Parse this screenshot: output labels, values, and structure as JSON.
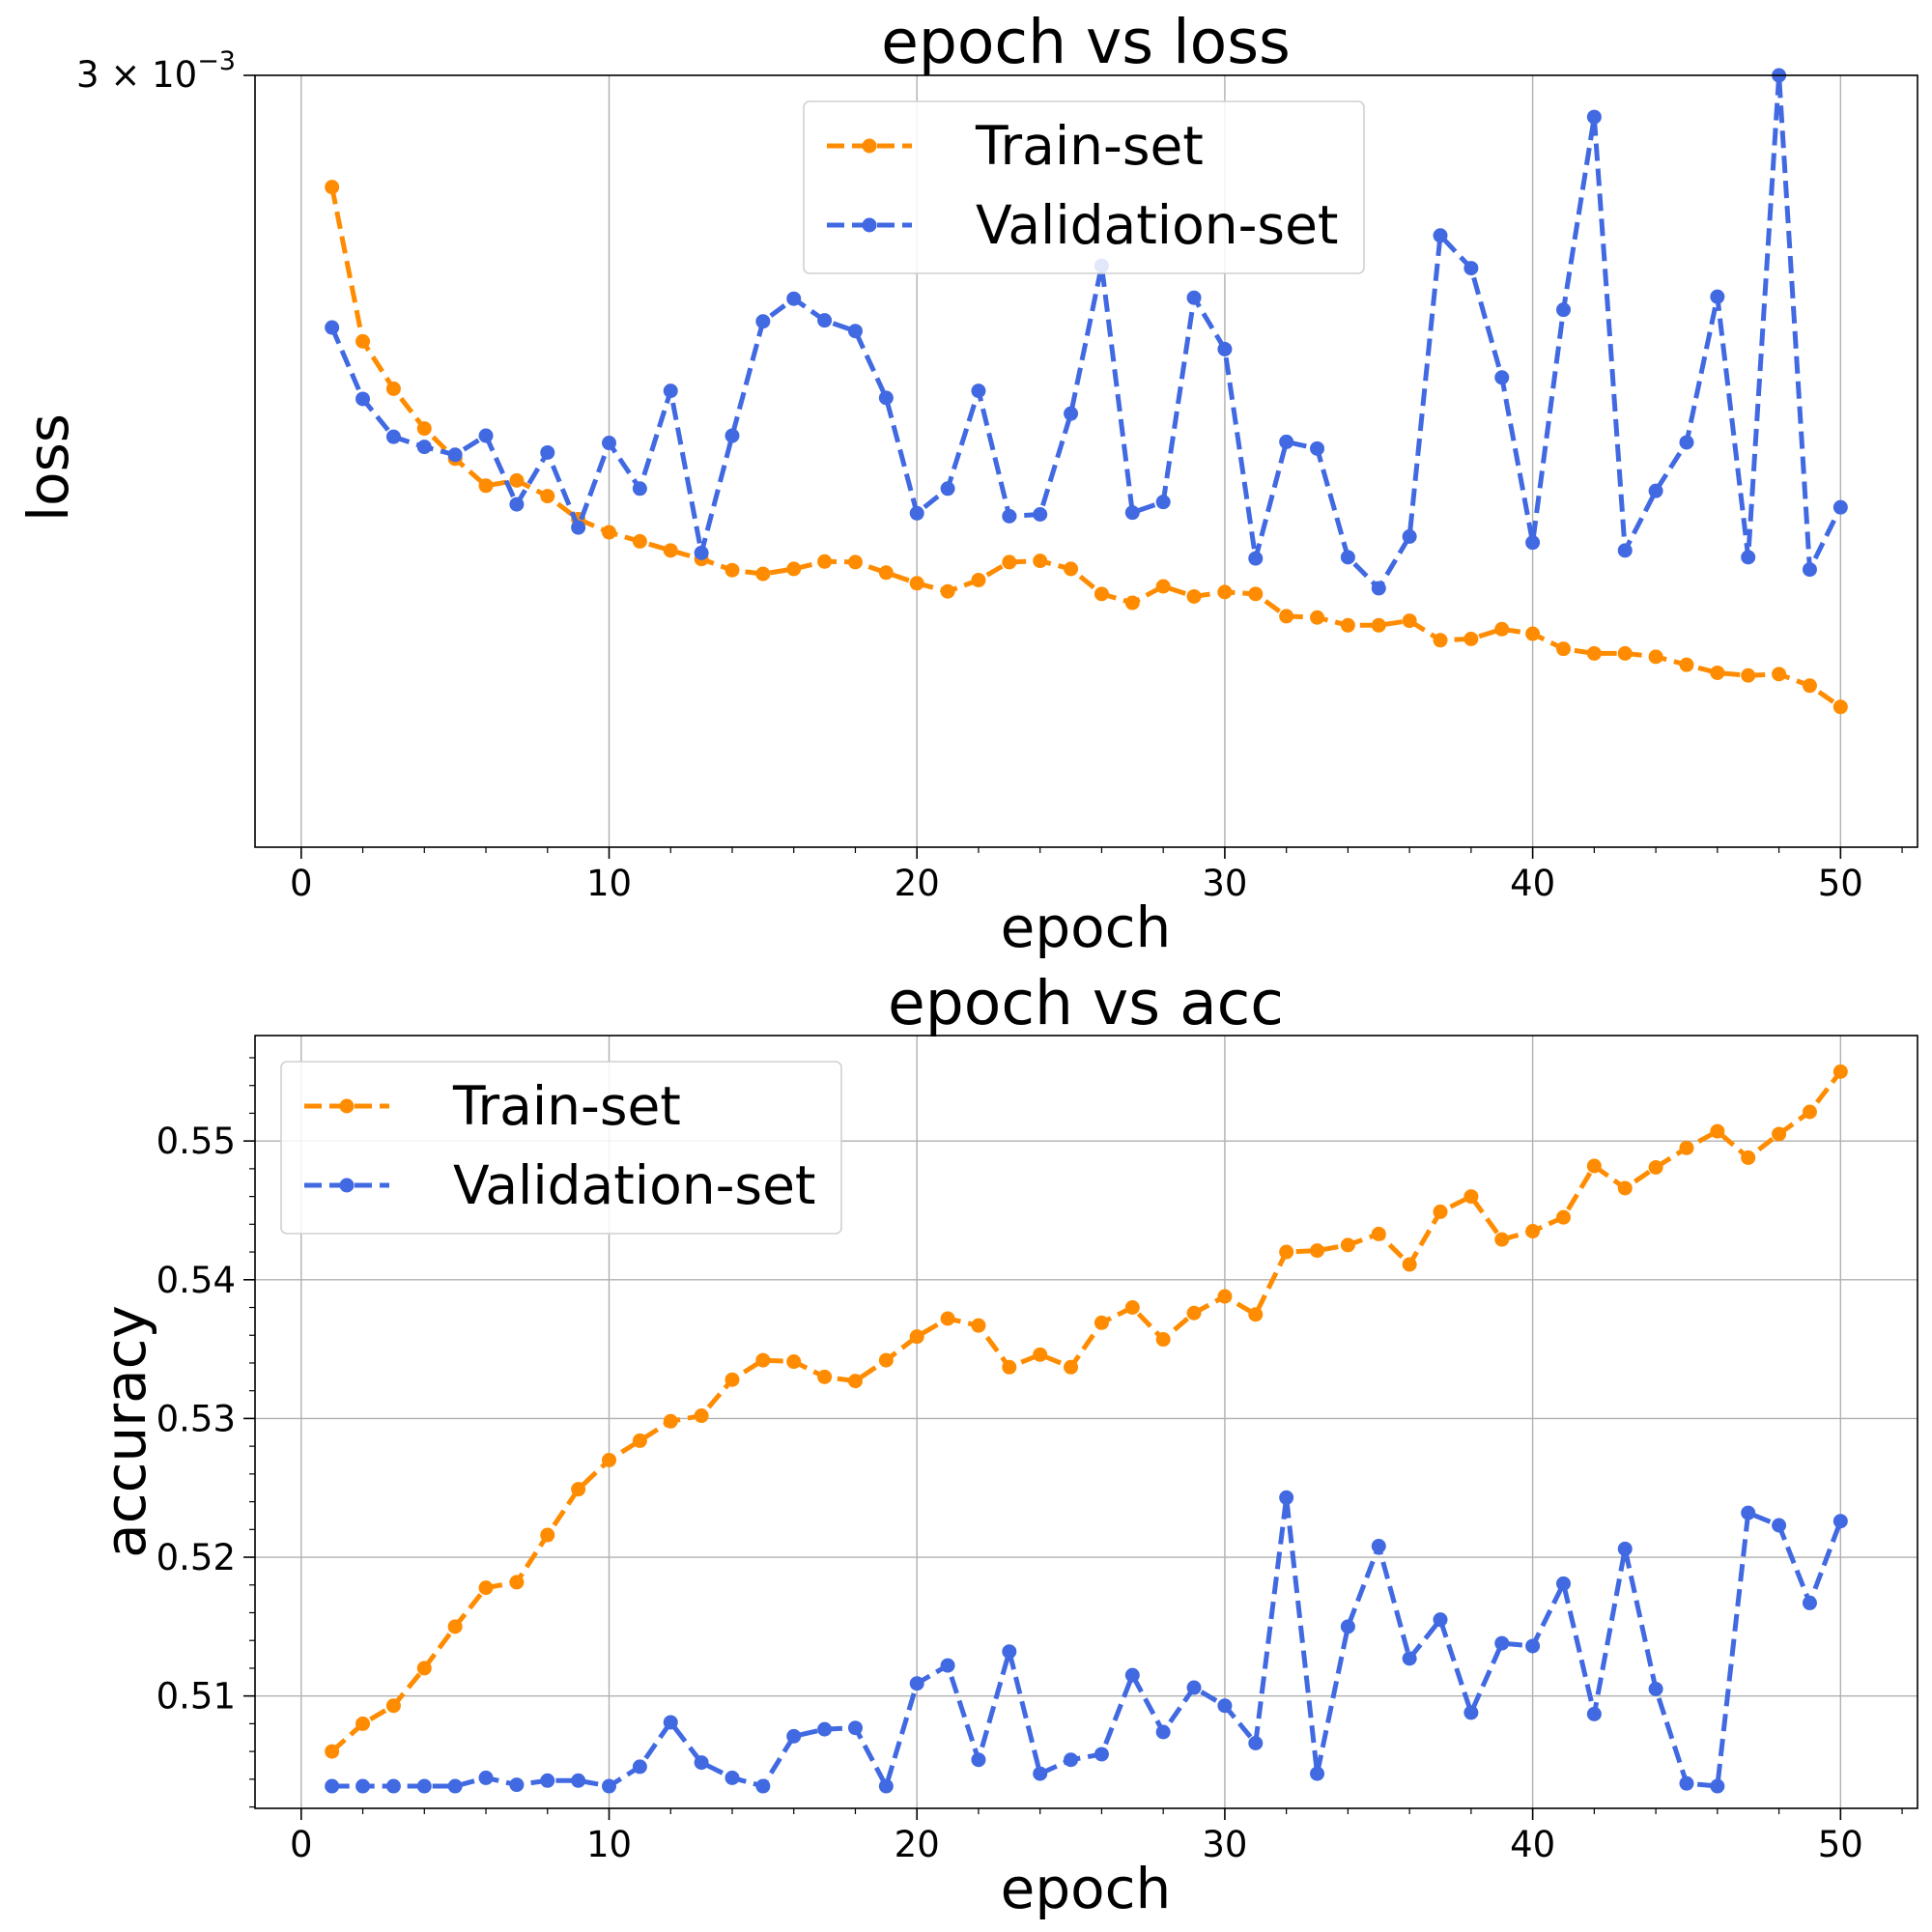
{
  "chart_data": [
    {
      "type": "line",
      "title": "epoch vs loss",
      "xlabel": "epoch",
      "ylabel": "loss",
      "y_scale": "log",
      "xlim": [
        -1.5,
        52.5
      ],
      "ylim": [
        0.00162,
        0.003
      ],
      "x_ticks": [
        0,
        10,
        20,
        30,
        40,
        50
      ],
      "y_ticks": [
        {
          "value": 0.003,
          "base": "3 × 10",
          "exp": "−3"
        }
      ],
      "grid": "x-only",
      "legend_position": "upper-center",
      "x": [
        1,
        2,
        3,
        4,
        5,
        6,
        7,
        8,
        9,
        10,
        11,
        12,
        13,
        14,
        15,
        16,
        17,
        18,
        19,
        20,
        21,
        22,
        23,
        24,
        25,
        26,
        27,
        28,
        29,
        30,
        31,
        32,
        33,
        34,
        35,
        36,
        37,
        38,
        39,
        40,
        41,
        42,
        43,
        44,
        45,
        46,
        47,
        48,
        49,
        50
      ],
      "series": [
        {
          "name": "Train-set",
          "color": "#ff8c00",
          "values": [
            0.002744,
            0.002426,
            0.002336,
            0.002263,
            0.002209,
            0.002162,
            0.002171,
            0.002144,
            0.002105,
            0.002083,
            0.002068,
            0.002053,
            0.002039,
            0.002021,
            0.002015,
            0.002023,
            0.002035,
            0.002034,
            0.002017,
            0.002,
            0.001987,
            0.002005,
            0.002034,
            0.002036,
            0.002023,
            0.001983,
            0.001969,
            0.001995,
            0.001979,
            0.001986,
            0.001983,
            0.001948,
            0.001946,
            0.001934,
            0.001934,
            0.001941,
            0.001911,
            0.001913,
            0.001928,
            0.001921,
            0.001898,
            0.001891,
            0.001891,
            0.001886,
            0.001874,
            0.001862,
            0.001858,
            0.00186,
            0.001843,
            0.001812
          ]
        },
        {
          "name": "Validation-set",
          "color": "#4169e1",
          "values": [
            0.002453,
            0.002317,
            0.002248,
            0.00223,
            0.002216,
            0.00225,
            0.00213,
            0.00222,
            0.002091,
            0.002237,
            0.002157,
            0.002332,
            0.002049,
            0.00225,
            0.002465,
            0.00251,
            0.002467,
            0.002446,
            0.002319,
            0.002115,
            0.002157,
            0.002332,
            0.00211,
            0.002113,
            0.00229,
            0.002577,
            0.002116,
            0.002134,
            0.002512,
            0.002411,
            0.00204,
            0.002239,
            0.002227,
            0.002042,
            0.001992,
            0.002076,
            0.00264,
            0.002572,
            0.002357,
            0.002066,
            0.002488,
            0.002902,
            0.002053,
            0.002153,
            0.002238,
            0.002514,
            0.002042,
            0.003,
            0.002022,
            0.002125
          ]
        }
      ]
    },
    {
      "type": "line",
      "title": "epoch vs acc",
      "xlabel": "epoch",
      "ylabel": "accuracy",
      "xlim": [
        -1.5,
        52.5
      ],
      "ylim": [
        0.5019,
        0.5576
      ],
      "x_ticks": [
        0,
        10,
        20,
        30,
        40,
        50
      ],
      "y_ticks": [
        0.51,
        0.52,
        0.53,
        0.54,
        0.55
      ],
      "y_tick_labels": [
        "0.51",
        "0.52",
        "0.53",
        "0.54",
        "0.55"
      ],
      "grid": "both",
      "legend_position": "upper-left",
      "x": [
        1,
        2,
        3,
        4,
        5,
        6,
        7,
        8,
        9,
        10,
        11,
        12,
        13,
        14,
        15,
        16,
        17,
        18,
        19,
        20,
        21,
        22,
        23,
        24,
        25,
        26,
        27,
        28,
        29,
        30,
        31,
        32,
        33,
        34,
        35,
        36,
        37,
        38,
        39,
        40,
        41,
        42,
        43,
        44,
        45,
        46,
        47,
        48,
        49,
        50
      ],
      "series": [
        {
          "name": "Train-set",
          "color": "#ff8c00",
          "values": [
            0.506,
            0.508,
            0.5093,
            0.512,
            0.515,
            0.5178,
            0.5182,
            0.5216,
            0.5249,
            0.527,
            0.5284,
            0.5298,
            0.5302,
            0.5328,
            0.5342,
            0.5341,
            0.533,
            0.5327,
            0.5342,
            0.5359,
            0.5372,
            0.5367,
            0.5337,
            0.5346,
            0.5337,
            0.5369,
            0.538,
            0.5357,
            0.5376,
            0.5388,
            0.5375,
            0.542,
            0.5421,
            0.5425,
            0.5433,
            0.5411,
            0.5449,
            0.546,
            0.5429,
            0.5435,
            0.5445,
            0.5482,
            0.5466,
            0.5481,
            0.5495,
            0.5507,
            0.5488,
            0.5505,
            0.5521,
            0.555
          ]
        },
        {
          "name": "Validation-set",
          "color": "#4169e1",
          "values": [
            0.5035,
            0.5035,
            0.5035,
            0.5035,
            0.5035,
            0.5041,
            0.5036,
            0.5039,
            0.5039,
            0.5035,
            0.5049,
            0.5081,
            0.5052,
            0.5041,
            0.5035,
            0.5071,
            0.5076,
            0.5077,
            0.5035,
            0.5109,
            0.5122,
            0.5054,
            0.5132,
            0.5044,
            0.5054,
            0.5058,
            0.5115,
            0.5074,
            0.5106,
            0.5093,
            0.5066,
            0.5243,
            0.5044,
            0.515,
            0.5208,
            0.5127,
            0.5155,
            0.5088,
            0.5138,
            0.5136,
            0.5181,
            0.5087,
            0.5206,
            0.5105,
            0.5037,
            0.5035,
            0.5232,
            0.5223,
            0.5167,
            0.5226
          ]
        }
      ]
    }
  ]
}
